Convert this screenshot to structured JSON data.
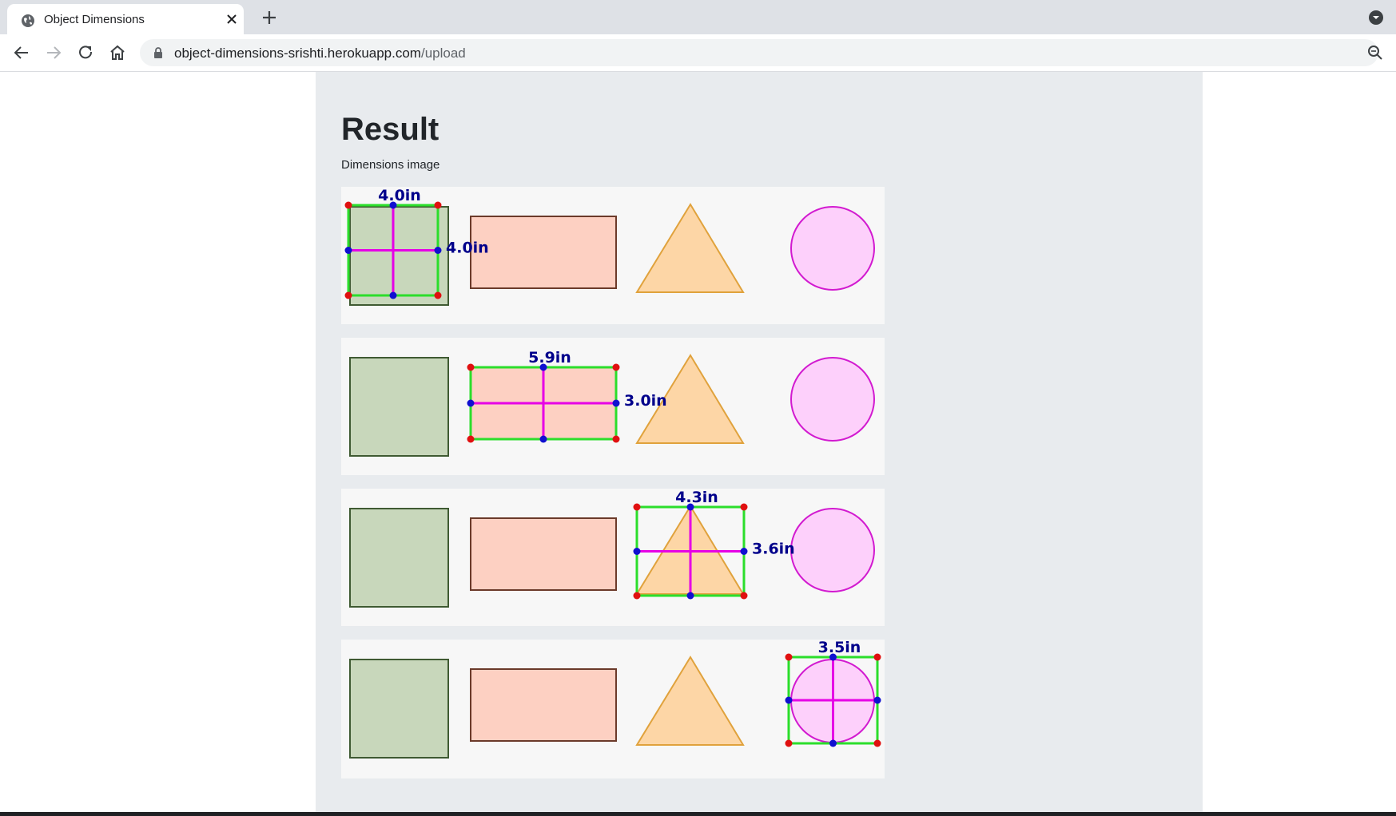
{
  "browser": {
    "tab_title": "Object Dimensions",
    "url_host": "object-dimensions-srishti.herokuapp.com",
    "url_path": "/upload"
  },
  "page": {
    "heading": "Result",
    "caption": "Dimensions image"
  },
  "result_rows": [
    {
      "measured_shape": "square",
      "width_label": "4.0in",
      "height_label": "4.0in"
    },
    {
      "measured_shape": "rectangle",
      "width_label": "5.9in",
      "height_label": "3.0in"
    },
    {
      "measured_shape": "triangle",
      "width_label": "4.3in",
      "height_label": "3.6in"
    },
    {
      "measured_shape": "circle",
      "width_label": "3.5in",
      "height_label": ""
    }
  ],
  "colors": {
    "square_fill": "#c8d7bb",
    "square_stroke": "#3f5a32",
    "rect_fill": "#fdd0c2",
    "rect_stroke": "#6b3a2a",
    "triangle_fill": "#fdd6a6",
    "triangle_stroke": "#e0a23c",
    "circle_fill": "#fdd0fb",
    "circle_stroke": "#d21ad0",
    "box": "#2bde2b",
    "cross": "#e600e6",
    "corner": "#e01010",
    "midpoint": "#1010d0",
    "label": "#00008b"
  }
}
